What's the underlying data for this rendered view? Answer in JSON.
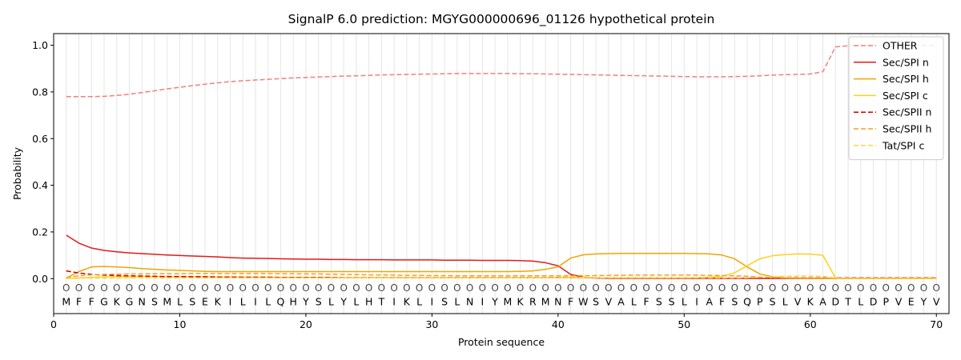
{
  "chart_data": {
    "type": "line",
    "title": "SignalP 6.0 prediction: MGYG000000696_01126 hypothetical protein",
    "xlabel": "Protein sequence",
    "ylabel": "Probability",
    "xlim": [
      0,
      71
    ],
    "ylim": [
      -0.15,
      1.05
    ],
    "x_ticks": [
      0,
      10,
      20,
      30,
      40,
      50,
      60,
      70
    ],
    "y_ticks": [
      0.0,
      0.2,
      0.4,
      0.6,
      0.8,
      1.0
    ],
    "y_tick_labels": [
      "0.0",
      "0.2",
      "0.4",
      "0.6",
      "0.8",
      "1.0"
    ],
    "grid": "vertical lines at each residue",
    "legend_position": "top-right",
    "sequence": [
      "M",
      "F",
      "F",
      "G",
      "K",
      "G",
      "N",
      "S",
      "M",
      "L",
      "S",
      "E",
      "K",
      "I",
      "L",
      "I",
      "L",
      "Q",
      "H",
      "Y",
      "S",
      "L",
      "Y",
      "L",
      "H",
      "T",
      "I",
      "K",
      "L",
      "I",
      "S",
      "L",
      "N",
      "I",
      "Y",
      "M",
      "K",
      "R",
      "M",
      "N",
      "F",
      "W",
      "S",
      "V",
      "A",
      "L",
      "F",
      "S",
      "S",
      "L",
      "I",
      "A",
      "F",
      "S",
      "Q",
      "P",
      "S",
      "L",
      "V",
      "K",
      "A",
      "D",
      "T",
      "L",
      "D",
      "P",
      "V",
      "E",
      "Y",
      "V"
    ],
    "residue_marker": "O",
    "series": [
      {
        "name": "OTHER",
        "color": "#f08080",
        "dash": "dashed",
        "values": [
          0.78,
          0.78,
          0.78,
          0.781,
          0.785,
          0.79,
          0.797,
          0.805,
          0.813,
          0.82,
          0.827,
          0.833,
          0.839,
          0.844,
          0.848,
          0.851,
          0.854,
          0.857,
          0.86,
          0.862,
          0.864,
          0.866,
          0.868,
          0.869,
          0.871,
          0.873,
          0.874,
          0.875,
          0.876,
          0.877,
          0.878,
          0.879,
          0.879,
          0.879,
          0.879,
          0.879,
          0.878,
          0.878,
          0.877,
          0.876,
          0.875,
          0.874,
          0.873,
          0.872,
          0.871,
          0.87,
          0.869,
          0.868,
          0.867,
          0.866,
          0.865,
          0.865,
          0.865,
          0.866,
          0.867,
          0.869,
          0.872,
          0.874,
          0.875,
          0.877,
          0.887,
          0.993,
          0.998,
          0.999,
          0.999,
          0.999,
          0.999,
          0.999,
          0.999,
          0.999
        ]
      },
      {
        "name": "Sec/SPI n",
        "color": "#e31a1c",
        "dash": "solid",
        "values": [
          0.186,
          0.152,
          0.131,
          0.121,
          0.115,
          0.11,
          0.107,
          0.104,
          0.101,
          0.099,
          0.097,
          0.095,
          0.093,
          0.09,
          0.088,
          0.087,
          0.086,
          0.085,
          0.084,
          0.083,
          0.083,
          0.082,
          0.082,
          0.081,
          0.081,
          0.081,
          0.08,
          0.08,
          0.08,
          0.08,
          0.079,
          0.079,
          0.079,
          0.078,
          0.078,
          0.078,
          0.077,
          0.075,
          0.068,
          0.055,
          0.018,
          0.006,
          0.002,
          0.001,
          0.001,
          0.001,
          0.001,
          0.001,
          0.001,
          0.001,
          0.001,
          0.001,
          0.001,
          0.001,
          0.001,
          0.001,
          0.001,
          0.001,
          0.001,
          0.001,
          0.001,
          0.001,
          0.001,
          0.001,
          0.001,
          0.001,
          0.001,
          0.001,
          0.001,
          0.001
        ]
      },
      {
        "name": "Sec/SPI h",
        "color": "#f0a500",
        "dash": "solid",
        "values": [
          0.002,
          0.03,
          0.05,
          0.052,
          0.05,
          0.047,
          0.043,
          0.04,
          0.037,
          0.035,
          0.033,
          0.031,
          0.03,
          0.03,
          0.03,
          0.03,
          0.03,
          0.03,
          0.03,
          0.03,
          0.03,
          0.03,
          0.03,
          0.03,
          0.03,
          0.03,
          0.03,
          0.03,
          0.03,
          0.03,
          0.03,
          0.03,
          0.03,
          0.03,
          0.03,
          0.03,
          0.031,
          0.033,
          0.04,
          0.05,
          0.088,
          0.102,
          0.106,
          0.107,
          0.108,
          0.108,
          0.108,
          0.108,
          0.108,
          0.108,
          0.107,
          0.106,
          0.101,
          0.085,
          0.05,
          0.02,
          0.008,
          0.003,
          0.002,
          0.001,
          0.001,
          0.001,
          0.001,
          0.001,
          0.001,
          0.001,
          0.001,
          0.001,
          0.001,
          0.001
        ]
      },
      {
        "name": "Sec/SPI c",
        "color": "#ffd11a",
        "dash": "solid",
        "values": [
          0.001,
          0.003,
          0.005,
          0.007,
          0.008,
          0.008,
          0.008,
          0.008,
          0.008,
          0.008,
          0.008,
          0.008,
          0.007,
          0.007,
          0.006,
          0.006,
          0.006,
          0.005,
          0.005,
          0.005,
          0.004,
          0.004,
          0.004,
          0.004,
          0.004,
          0.004,
          0.004,
          0.004,
          0.004,
          0.004,
          0.004,
          0.004,
          0.004,
          0.004,
          0.004,
          0.004,
          0.004,
          0.004,
          0.004,
          0.005,
          0.006,
          0.005,
          0.004,
          0.003,
          0.003,
          0.003,
          0.003,
          0.003,
          0.003,
          0.003,
          0.004,
          0.006,
          0.01,
          0.025,
          0.055,
          0.085,
          0.098,
          0.103,
          0.106,
          0.105,
          0.1,
          0.003,
          0.001,
          0.001,
          0.001,
          0.001,
          0.001,
          0.001,
          0.001,
          0.001
        ]
      },
      {
        "name": "Sec/SPII n",
        "color": "#cc0000",
        "dash": "dashed",
        "values": [
          0.033,
          0.024,
          0.018,
          0.015,
          0.013,
          0.012,
          0.011,
          0.01,
          0.009,
          0.009,
          0.008,
          0.008,
          0.007,
          0.007,
          0.006,
          0.006,
          0.006,
          0.005,
          0.005,
          0.005,
          0.005,
          0.005,
          0.004,
          0.004,
          0.004,
          0.004,
          0.004,
          0.004,
          0.004,
          0.004,
          0.004,
          0.004,
          0.004,
          0.004,
          0.004,
          0.004,
          0.004,
          0.004,
          0.004,
          0.004,
          0.003,
          0.003,
          0.003,
          0.003,
          0.003,
          0.003,
          0.003,
          0.003,
          0.003,
          0.003,
          0.003,
          0.003,
          0.003,
          0.003,
          0.003,
          0.003,
          0.003,
          0.003,
          0.003,
          0.003,
          0.003,
          0.003,
          0.003,
          0.003,
          0.003,
          0.003,
          0.003,
          0.003,
          0.003,
          0.003
        ]
      },
      {
        "name": "Sec/SPII h",
        "color": "#f5a020",
        "dash": "dashed",
        "values": [
          0.005,
          0.012,
          0.016,
          0.018,
          0.019,
          0.02,
          0.02,
          0.021,
          0.021,
          0.021,
          0.022,
          0.022,
          0.022,
          0.022,
          0.022,
          0.022,
          0.022,
          0.021,
          0.021,
          0.02,
          0.02,
          0.019,
          0.018,
          0.017,
          0.016,
          0.016,
          0.015,
          0.014,
          0.014,
          0.013,
          0.013,
          0.012,
          0.012,
          0.012,
          0.012,
          0.012,
          0.012,
          0.012,
          0.012,
          0.012,
          0.012,
          0.013,
          0.013,
          0.014,
          0.014,
          0.015,
          0.015,
          0.015,
          0.015,
          0.015,
          0.015,
          0.014,
          0.013,
          0.012,
          0.01,
          0.007,
          0.005,
          0.003,
          0.002,
          0.002,
          0.002,
          0.001,
          0.001,
          0.001,
          0.001,
          0.001,
          0.001,
          0.001,
          0.001,
          0.001
        ]
      },
      {
        "name": "Tat/SPI c",
        "color": "#ffd54a",
        "dash": "dashed",
        "values": [
          0.001,
          0.001,
          0.002,
          0.002,
          0.002,
          0.003,
          0.003,
          0.003,
          0.003,
          0.003,
          0.003,
          0.003,
          0.003,
          0.003,
          0.003,
          0.003,
          0.003,
          0.003,
          0.003,
          0.003,
          0.003,
          0.003,
          0.003,
          0.003,
          0.003,
          0.003,
          0.003,
          0.003,
          0.003,
          0.003,
          0.003,
          0.003,
          0.003,
          0.003,
          0.003,
          0.003,
          0.003,
          0.003,
          0.003,
          0.003,
          0.003,
          0.003,
          0.003,
          0.003,
          0.003,
          0.003,
          0.003,
          0.003,
          0.003,
          0.003,
          0.003,
          0.003,
          0.003,
          0.003,
          0.004,
          0.006,
          0.008,
          0.01,
          0.011,
          0.011,
          0.01,
          0.002,
          0.001,
          0.001,
          0.001,
          0.001,
          0.001,
          0.001,
          0.001,
          0.001
        ]
      }
    ]
  }
}
